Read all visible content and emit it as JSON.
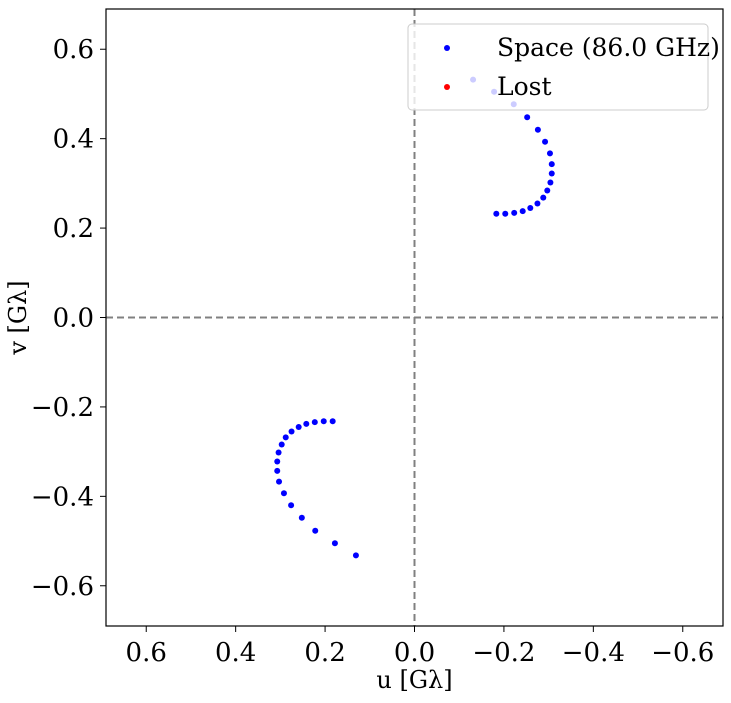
{
  "chart_data": {
    "type": "scatter",
    "title": "",
    "xlabel": "u [Gλ]",
    "ylabel": "v [Gλ]",
    "xlim": [
      0.69,
      -0.69
    ],
    "ylim": [
      -0.69,
      0.69
    ],
    "x_inverted": true,
    "xticks": [
      0.6,
      0.4,
      0.2,
      0.0,
      -0.2,
      -0.4,
      -0.6
    ],
    "xtick_labels": [
      "0.6",
      "0.4",
      "0.2",
      "0.0",
      "−0.2",
      "−0.4",
      "−0.6"
    ],
    "yticks": [
      0.6,
      0.4,
      0.2,
      0.0,
      -0.2,
      -0.4,
      -0.6
    ],
    "ytick_labels": [
      "0.6",
      "0.4",
      "0.2",
      "0.0",
      "−0.2",
      "−0.4",
      "−0.6"
    ],
    "reference_lines": {
      "x": 0.0,
      "y": 0.0,
      "style": "dashed",
      "color": "#808080"
    },
    "grid": false,
    "legend_position": "upper right",
    "series": [
      {
        "name": "Space (86.0 GHz)",
        "color": "#0000ff",
        "x": [
          -0.131,
          -0.178,
          -0.222,
          -0.252,
          -0.276,
          -0.292,
          -0.303,
          -0.307,
          -0.307,
          -0.304,
          -0.297,
          -0.288,
          -0.275,
          -0.259,
          -0.242,
          -0.223,
          -0.203,
          -0.183
        ],
        "y": [
          0.532,
          0.505,
          0.477,
          0.448,
          0.42,
          0.393,
          0.367,
          0.343,
          0.322,
          0.302,
          0.284,
          0.268,
          0.255,
          0.245,
          0.238,
          0.234,
          0.232,
          0.232
        ]
      },
      {
        "name": "Space (86.0 GHz)",
        "color": "#0000ff",
        "x": [
          0.131,
          0.178,
          0.222,
          0.252,
          0.276,
          0.292,
          0.303,
          0.307,
          0.307,
          0.304,
          0.297,
          0.288,
          0.275,
          0.259,
          0.242,
          0.223,
          0.203,
          0.183
        ],
        "y": [
          -0.532,
          -0.505,
          -0.477,
          -0.448,
          -0.42,
          -0.393,
          -0.367,
          -0.343,
          -0.322,
          -0.302,
          -0.284,
          -0.268,
          -0.255,
          -0.245,
          -0.238,
          -0.234,
          -0.232,
          -0.232
        ]
      },
      {
        "name": "Lost",
        "color": "#ff0000",
        "x": [],
        "y": []
      }
    ],
    "legend": [
      {
        "label": "Space (86.0 GHz)",
        "color": "#0000ff"
      },
      {
        "label": "Lost",
        "color": "#ff0000"
      }
    ]
  }
}
